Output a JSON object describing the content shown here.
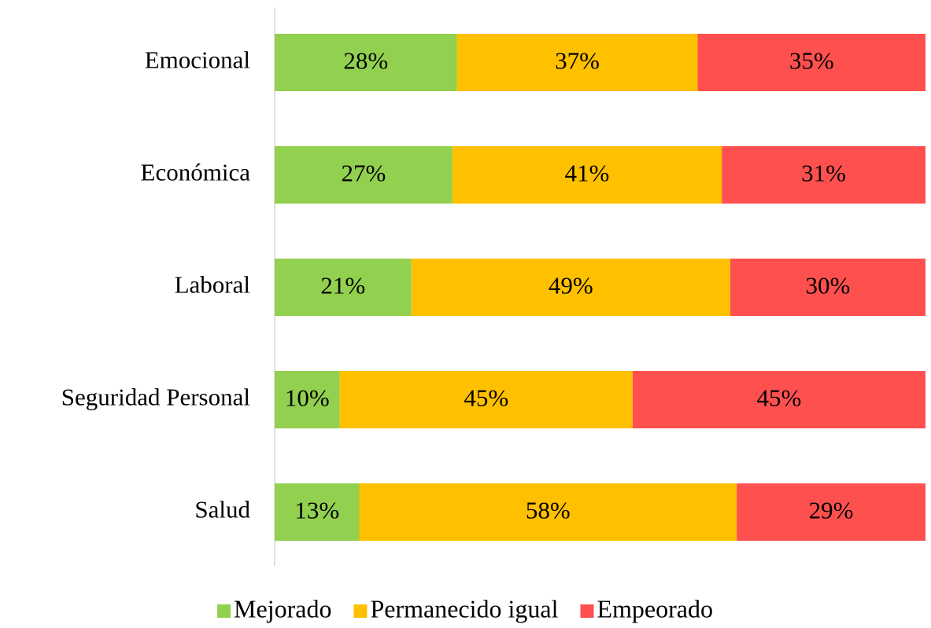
{
  "chart_data": {
    "type": "stacked-bar-horizontal",
    "categories": [
      "Emocional",
      "Económica",
      "Laboral",
      "Seguridad Personal",
      "Salud"
    ],
    "xlim": [
      0,
      100
    ],
    "series": [
      {
        "name": "Mejorado",
        "color": "#92d050",
        "values": [
          28,
          27.3,
          21,
          10,
          13
        ],
        "value_labels": [
          "28%",
          "27%",
          "21%",
          "10%",
          "13%"
        ]
      },
      {
        "name": "Permanecido igual",
        "color": "#ffc000",
        "values": [
          37,
          41.4,
          49,
          45,
          58
        ],
        "value_labels": [
          "37%",
          "41%",
          "49%",
          "45%",
          "58%"
        ]
      },
      {
        "name": "Empeorado",
        "color": "#ff5050",
        "values": [
          35,
          31.3,
          30,
          45,
          29
        ],
        "value_labels": [
          "35%",
          "31%",
          "30%",
          "45%",
          "29%"
        ]
      }
    ],
    "legend": "bottom"
  }
}
